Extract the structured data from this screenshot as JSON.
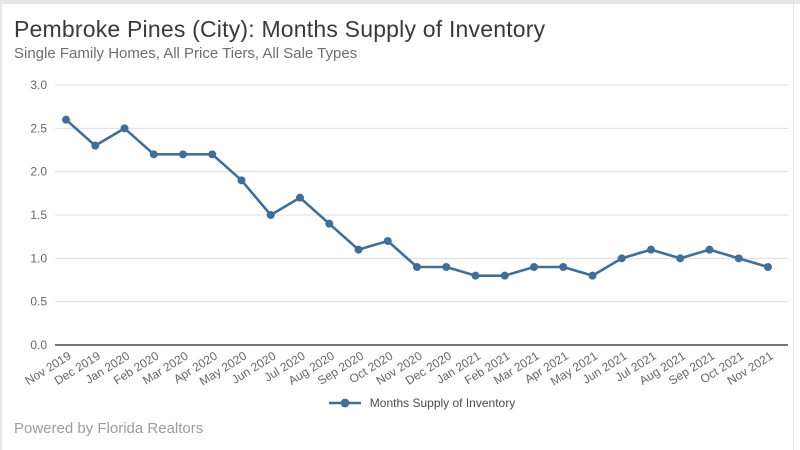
{
  "footer": {
    "text": "Powered by Florida Realtors"
  },
  "chart_data": {
    "type": "line",
    "title": "Pembroke Pines (City): Months Supply of Inventory",
    "subtitle": "Single Family Homes, All Price Tiers, All Sale Types",
    "xlabel": "",
    "ylabel": "",
    "categories": [
      "Nov 2019",
      "Dec 2019",
      "Jan 2020",
      "Feb 2020",
      "Mar 2020",
      "Apr 2020",
      "May 2020",
      "Jun 2020",
      "Jul 2020",
      "Aug 2020",
      "Sep 2020",
      "Oct 2020",
      "Nov 2020",
      "Dec 2020",
      "Jan 2021",
      "Feb 2021",
      "Mar 2021",
      "Apr 2021",
      "May 2021",
      "Jun 2021",
      "Jul 2021",
      "Aug 2021",
      "Sep 2021",
      "Oct 2021",
      "Nov 2021"
    ],
    "series": [
      {
        "name": "Months Supply of Inventory",
        "values": [
          2.6,
          2.3,
          2.5,
          2.2,
          2.2,
          2.2,
          1.9,
          1.5,
          1.7,
          1.4,
          1.1,
          1.2,
          0.9,
          0.9,
          0.8,
          0.8,
          0.9,
          0.9,
          0.8,
          1.0,
          1.1,
          1.0,
          1.1,
          1.0,
          0.9
        ]
      }
    ],
    "ylim": [
      0,
      3.0
    ],
    "yticks": [
      0,
      0.5,
      1.0,
      1.5,
      2.0,
      2.5,
      3.0
    ],
    "grid": true,
    "legend_position": "bottom",
    "colors": {
      "line": "#406e96",
      "grid": "#dcdcdc",
      "axis": "#4a4a4a",
      "tick_text": "#666666"
    }
  }
}
